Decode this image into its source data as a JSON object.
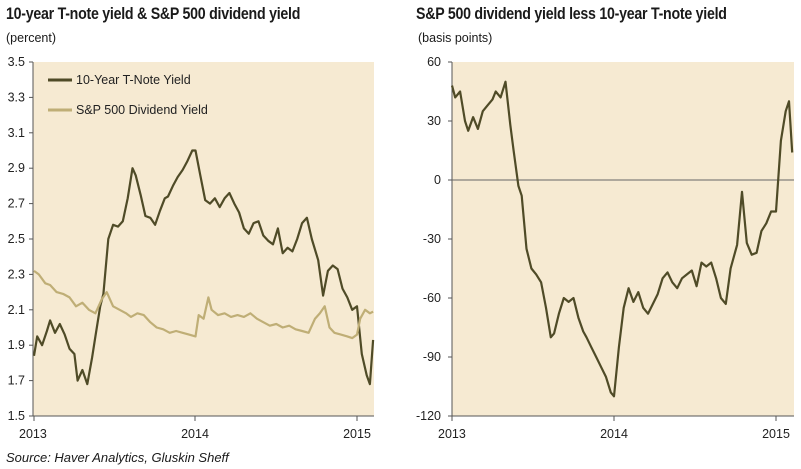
{
  "colors": {
    "plot_background": "#f6ead2",
    "t_note_line": "#4f4b27",
    "dividend_line": "#bfae76",
    "axis": "#555555"
  },
  "source": "Source: Haver Analytics, Gluskin Sheff",
  "chart_data": [
    {
      "type": "line",
      "title": "10-year T-note yield & S&P 500 dividend yield",
      "unit": "(percent)",
      "xlabel": "",
      "ylabel": "",
      "x_ticks": [
        "2013",
        "2014",
        "2015"
      ],
      "x_range": [
        2013.0,
        2015.12
      ],
      "ylim": [
        1.5,
        3.5
      ],
      "y_ticks": [
        "1.5",
        "1.7",
        "1.9",
        "2.1",
        "2.3",
        "2.5",
        "2.7",
        "2.9",
        "3.1",
        "3.3",
        "3.5"
      ],
      "legend_position": "top-left",
      "series": [
        {
          "name": "10-Year T-Note Yield",
          "color_key": "t_note_line",
          "points": [
            [
              2013.0,
              1.84
            ],
            [
              2013.02,
              1.95
            ],
            [
              2013.05,
              1.9
            ],
            [
              2013.08,
              1.98
            ],
            [
              2013.1,
              2.04
            ],
            [
              2013.13,
              1.97
            ],
            [
              2013.16,
              2.02
            ],
            [
              2013.19,
              1.96
            ],
            [
              2013.22,
              1.88
            ],
            [
              2013.25,
              1.85
            ],
            [
              2013.27,
              1.7
            ],
            [
              2013.3,
              1.76
            ],
            [
              2013.33,
              1.68
            ],
            [
              2013.36,
              1.83
            ],
            [
              2013.38,
              1.95
            ],
            [
              2013.41,
              2.12
            ],
            [
              2013.43,
              2.19
            ],
            [
              2013.46,
              2.5
            ],
            [
              2013.49,
              2.58
            ],
            [
              2013.52,
              2.57
            ],
            [
              2013.55,
              2.6
            ],
            [
              2013.58,
              2.73
            ],
            [
              2013.61,
              2.9
            ],
            [
              2013.63,
              2.86
            ],
            [
              2013.66,
              2.75
            ],
            [
              2013.69,
              2.63
            ],
            [
              2013.72,
              2.62
            ],
            [
              2013.75,
              2.58
            ],
            [
              2013.78,
              2.66
            ],
            [
              2013.81,
              2.73
            ],
            [
              2013.83,
              2.74
            ],
            [
              2013.86,
              2.8
            ],
            [
              2013.89,
              2.85
            ],
            [
              2013.92,
              2.89
            ],
            [
              2013.95,
              2.94
            ],
            [
              2013.98,
              3.0
            ],
            [
              2014.0,
              3.0
            ],
            [
              2014.03,
              2.86
            ],
            [
              2014.06,
              2.72
            ],
            [
              2014.09,
              2.7
            ],
            [
              2014.12,
              2.73
            ],
            [
              2014.15,
              2.68
            ],
            [
              2014.18,
              2.73
            ],
            [
              2014.21,
              2.76
            ],
            [
              2014.24,
              2.7
            ],
            [
              2014.27,
              2.65
            ],
            [
              2014.3,
              2.56
            ],
            [
              2014.33,
              2.53
            ],
            [
              2014.36,
              2.59
            ],
            [
              2014.39,
              2.6
            ],
            [
              2014.42,
              2.52
            ],
            [
              2014.45,
              2.49
            ],
            [
              2014.48,
              2.47
            ],
            [
              2014.51,
              2.56
            ],
            [
              2014.54,
              2.42
            ],
            [
              2014.57,
              2.45
            ],
            [
              2014.6,
              2.43
            ],
            [
              2014.63,
              2.5
            ],
            [
              2014.66,
              2.59
            ],
            [
              2014.69,
              2.62
            ],
            [
              2014.72,
              2.5
            ],
            [
              2014.76,
              2.38
            ],
            [
              2014.79,
              2.18
            ],
            [
              2014.82,
              2.32
            ],
            [
              2014.85,
              2.35
            ],
            [
              2014.88,
              2.33
            ],
            [
              2014.91,
              2.22
            ],
            [
              2014.94,
              2.17
            ],
            [
              2014.97,
              2.1
            ],
            [
              2015.0,
              2.12
            ],
            [
              2015.03,
              1.85
            ],
            [
              2015.06,
              1.73
            ],
            [
              2015.08,
              1.68
            ],
            [
              2015.1,
              1.93
            ]
          ]
        },
        {
          "name": "S&P 500 Dividend Yield",
          "color_key": "dividend_line",
          "points": [
            [
              2013.0,
              2.32
            ],
            [
              2013.03,
              2.3
            ],
            [
              2013.07,
              2.25
            ],
            [
              2013.1,
              2.24
            ],
            [
              2013.14,
              2.2
            ],
            [
              2013.18,
              2.19
            ],
            [
              2013.22,
              2.17
            ],
            [
              2013.26,
              2.12
            ],
            [
              2013.3,
              2.14
            ],
            [
              2013.34,
              2.1
            ],
            [
              2013.38,
              2.08
            ],
            [
              2013.42,
              2.16
            ],
            [
              2013.45,
              2.2
            ],
            [
              2013.49,
              2.12
            ],
            [
              2013.53,
              2.1
            ],
            [
              2013.57,
              2.08
            ],
            [
              2013.6,
              2.06
            ],
            [
              2013.64,
              2.08
            ],
            [
              2013.68,
              2.07
            ],
            [
              2013.72,
              2.03
            ],
            [
              2013.76,
              2.0
            ],
            [
              2013.8,
              1.99
            ],
            [
              2013.84,
              1.97
            ],
            [
              2013.88,
              1.98
            ],
            [
              2013.92,
              1.97
            ],
            [
              2013.96,
              1.96
            ],
            [
              2014.0,
              1.95
            ],
            [
              2014.02,
              2.07
            ],
            [
              2014.05,
              2.05
            ],
            [
              2014.08,
              2.17
            ],
            [
              2014.1,
              2.1
            ],
            [
              2014.14,
              2.07
            ],
            [
              2014.18,
              2.08
            ],
            [
              2014.22,
              2.06
            ],
            [
              2014.26,
              2.07
            ],
            [
              2014.3,
              2.06
            ],
            [
              2014.34,
              2.08
            ],
            [
              2014.38,
              2.05
            ],
            [
              2014.42,
              2.03
            ],
            [
              2014.46,
              2.01
            ],
            [
              2014.5,
              2.02
            ],
            [
              2014.54,
              2.0
            ],
            [
              2014.58,
              2.01
            ],
            [
              2014.62,
              1.99
            ],
            [
              2014.66,
              1.98
            ],
            [
              2014.7,
              1.97
            ],
            [
              2014.74,
              2.05
            ],
            [
              2014.77,
              2.08
            ],
            [
              2014.8,
              2.12
            ],
            [
              2014.83,
              2.0
            ],
            [
              2014.86,
              1.97
            ],
            [
              2014.9,
              1.96
            ],
            [
              2014.94,
              1.95
            ],
            [
              2014.97,
              1.94
            ],
            [
              2015.0,
              1.96
            ],
            [
              2015.02,
              2.05
            ],
            [
              2015.05,
              2.1
            ],
            [
              2015.08,
              2.08
            ],
            [
              2015.1,
              2.09
            ]
          ]
        }
      ]
    },
    {
      "type": "line",
      "title": "S&P 500 dividend yield less 10-year T-note yield",
      "unit": "(basis points)",
      "xlabel": "",
      "ylabel": "",
      "x_ticks": [
        "2013",
        "2014",
        "2015"
      ],
      "x_range": [
        2013.0,
        2015.12
      ],
      "ylim": [
        -120,
        60
      ],
      "y_ticks": [
        "-120",
        "-90",
        "-60",
        "-30",
        "0",
        "30",
        "60"
      ],
      "zero_line": true,
      "series": [
        {
          "name": "",
          "color_key": "t_note_line",
          "points": [
            [
              2013.0,
              48
            ],
            [
              2013.02,
              42
            ],
            [
              2013.05,
              45
            ],
            [
              2013.08,
              30
            ],
            [
              2013.1,
              25
            ],
            [
              2013.13,
              32
            ],
            [
              2013.16,
              26
            ],
            [
              2013.19,
              35
            ],
            [
              2013.22,
              38
            ],
            [
              2013.25,
              41
            ],
            [
              2013.27,
              45
            ],
            [
              2013.3,
              42
            ],
            [
              2013.33,
              50
            ],
            [
              2013.36,
              28
            ],
            [
              2013.38,
              15
            ],
            [
              2013.41,
              -3
            ],
            [
              2013.43,
              -8
            ],
            [
              2013.46,
              -35
            ],
            [
              2013.49,
              -45
            ],
            [
              2013.52,
              -48
            ],
            [
              2013.55,
              -52
            ],
            [
              2013.58,
              -65
            ],
            [
              2013.61,
              -80
            ],
            [
              2013.63,
              -78
            ],
            [
              2013.66,
              -68
            ],
            [
              2013.69,
              -60
            ],
            [
              2013.72,
              -62
            ],
            [
              2013.75,
              -60
            ],
            [
              2013.78,
              -70
            ],
            [
              2013.81,
              -77
            ],
            [
              2013.83,
              -80
            ],
            [
              2013.86,
              -85
            ],
            [
              2013.89,
              -90
            ],
            [
              2013.92,
              -95
            ],
            [
              2013.95,
              -100
            ],
            [
              2013.98,
              -108
            ],
            [
              2014.0,
              -110
            ],
            [
              2014.03,
              -85
            ],
            [
              2014.06,
              -65
            ],
            [
              2014.09,
              -55
            ],
            [
              2014.12,
              -62
            ],
            [
              2014.15,
              -57
            ],
            [
              2014.18,
              -65
            ],
            [
              2014.21,
              -68
            ],
            [
              2014.24,
              -63
            ],
            [
              2014.27,
              -58
            ],
            [
              2014.3,
              -50
            ],
            [
              2014.33,
              -47
            ],
            [
              2014.36,
              -52
            ],
            [
              2014.39,
              -55
            ],
            [
              2014.42,
              -50
            ],
            [
              2014.45,
              -48
            ],
            [
              2014.48,
              -46
            ],
            [
              2014.51,
              -54
            ],
            [
              2014.54,
              -42
            ],
            [
              2014.57,
              -44
            ],
            [
              2014.6,
              -42
            ],
            [
              2014.63,
              -50
            ],
            [
              2014.66,
              -60
            ],
            [
              2014.69,
              -63
            ],
            [
              2014.72,
              -45
            ],
            [
              2014.76,
              -33
            ],
            [
              2014.79,
              -6
            ],
            [
              2014.82,
              -32
            ],
            [
              2014.85,
              -38
            ],
            [
              2014.88,
              -37
            ],
            [
              2014.91,
              -26
            ],
            [
              2014.94,
              -22
            ],
            [
              2014.97,
              -16
            ],
            [
              2015.0,
              -16
            ],
            [
              2015.03,
              20
            ],
            [
              2015.06,
              35
            ],
            [
              2015.08,
              40
            ],
            [
              2015.1,
              14
            ]
          ]
        }
      ]
    }
  ]
}
